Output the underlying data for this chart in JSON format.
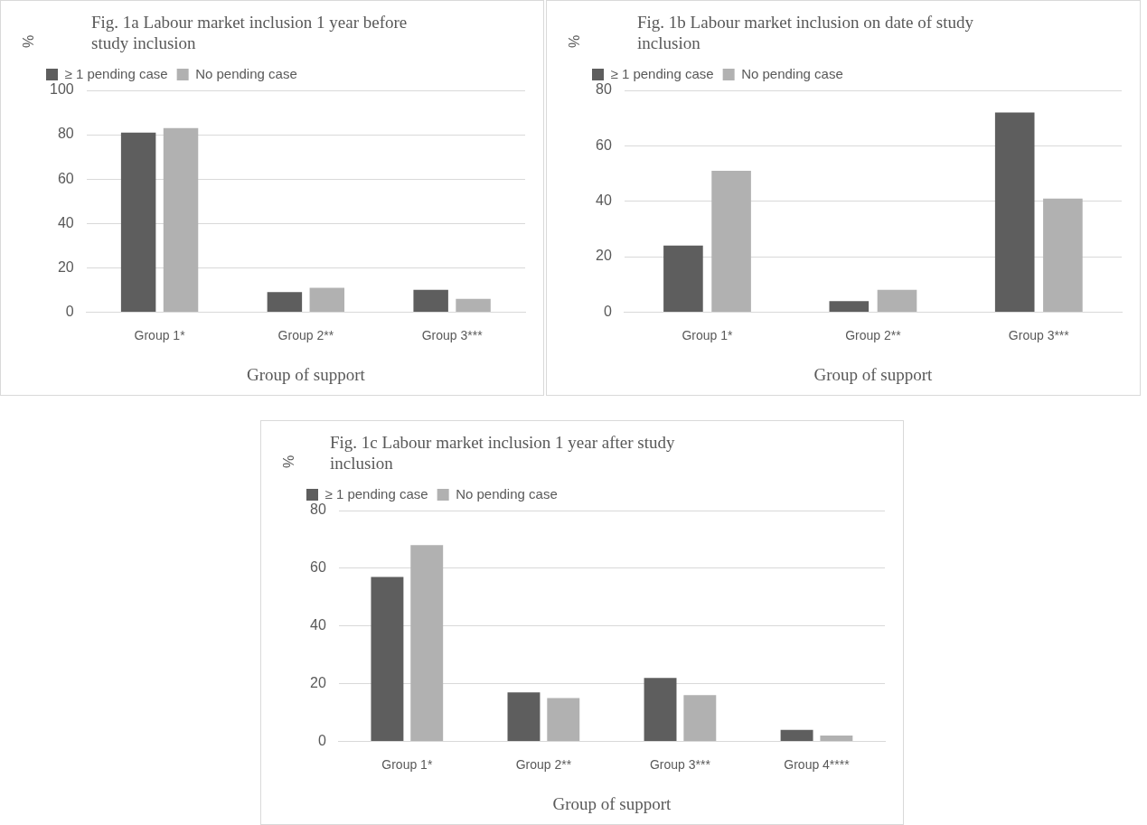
{
  "chart_data": [
    {
      "type": "bar",
      "title": "Fig. 1a Labour market inclusion 1 year before study inclusion",
      "ylabel": "%",
      "xlabel": "Group of support",
      "categories": [
        "Group 1*",
        "Group 2**",
        "Group 3***"
      ],
      "series": [
        {
          "name": "≥ 1 pending case",
          "color": "#5e5e5e",
          "values": [
            81,
            9,
            10
          ]
        },
        {
          "name": "No pending case",
          "color": "#b1b1b1",
          "values": [
            83,
            11,
            6
          ]
        }
      ],
      "ylim": [
        0,
        100
      ],
      "yticks": [
        0,
        20,
        40,
        60,
        80,
        100
      ],
      "grid": "y",
      "legend": "top left"
    },
    {
      "type": "bar",
      "title": "Fig. 1b Labour market inclusion on date of study inclusion",
      "ylabel": "%",
      "xlabel": "Group of support",
      "categories": [
        "Group 1*",
        "Group 2**",
        "Group 3***"
      ],
      "series": [
        {
          "name": "≥ 1 pending case",
          "color": "#5e5e5e",
          "values": [
            24,
            4,
            72
          ]
        },
        {
          "name": "No pending case",
          "color": "#b1b1b1",
          "values": [
            51,
            8,
            41
          ]
        }
      ],
      "ylim": [
        0,
        80
      ],
      "yticks": [
        0,
        20,
        40,
        60,
        80
      ],
      "grid": "y",
      "legend": "top left"
    },
    {
      "type": "bar",
      "title": "Fig. 1c Labour market inclusion 1 year after study inclusion",
      "ylabel": "%",
      "xlabel": "Group of support",
      "categories": [
        "Group 1*",
        "Group 2**",
        "Group 3***",
        "Group 4****"
      ],
      "series": [
        {
          "name": "≥ 1 pending case",
          "color": "#5e5e5e",
          "values": [
            57,
            17,
            22,
            4
          ]
        },
        {
          "name": "No pending case",
          "color": "#b1b1b1",
          "values": [
            68,
            15,
            16,
            2
          ]
        }
      ],
      "ylim": [
        0,
        80
      ],
      "yticks": [
        0,
        20,
        40,
        60,
        80
      ],
      "grid": "y",
      "legend": "top left"
    }
  ]
}
